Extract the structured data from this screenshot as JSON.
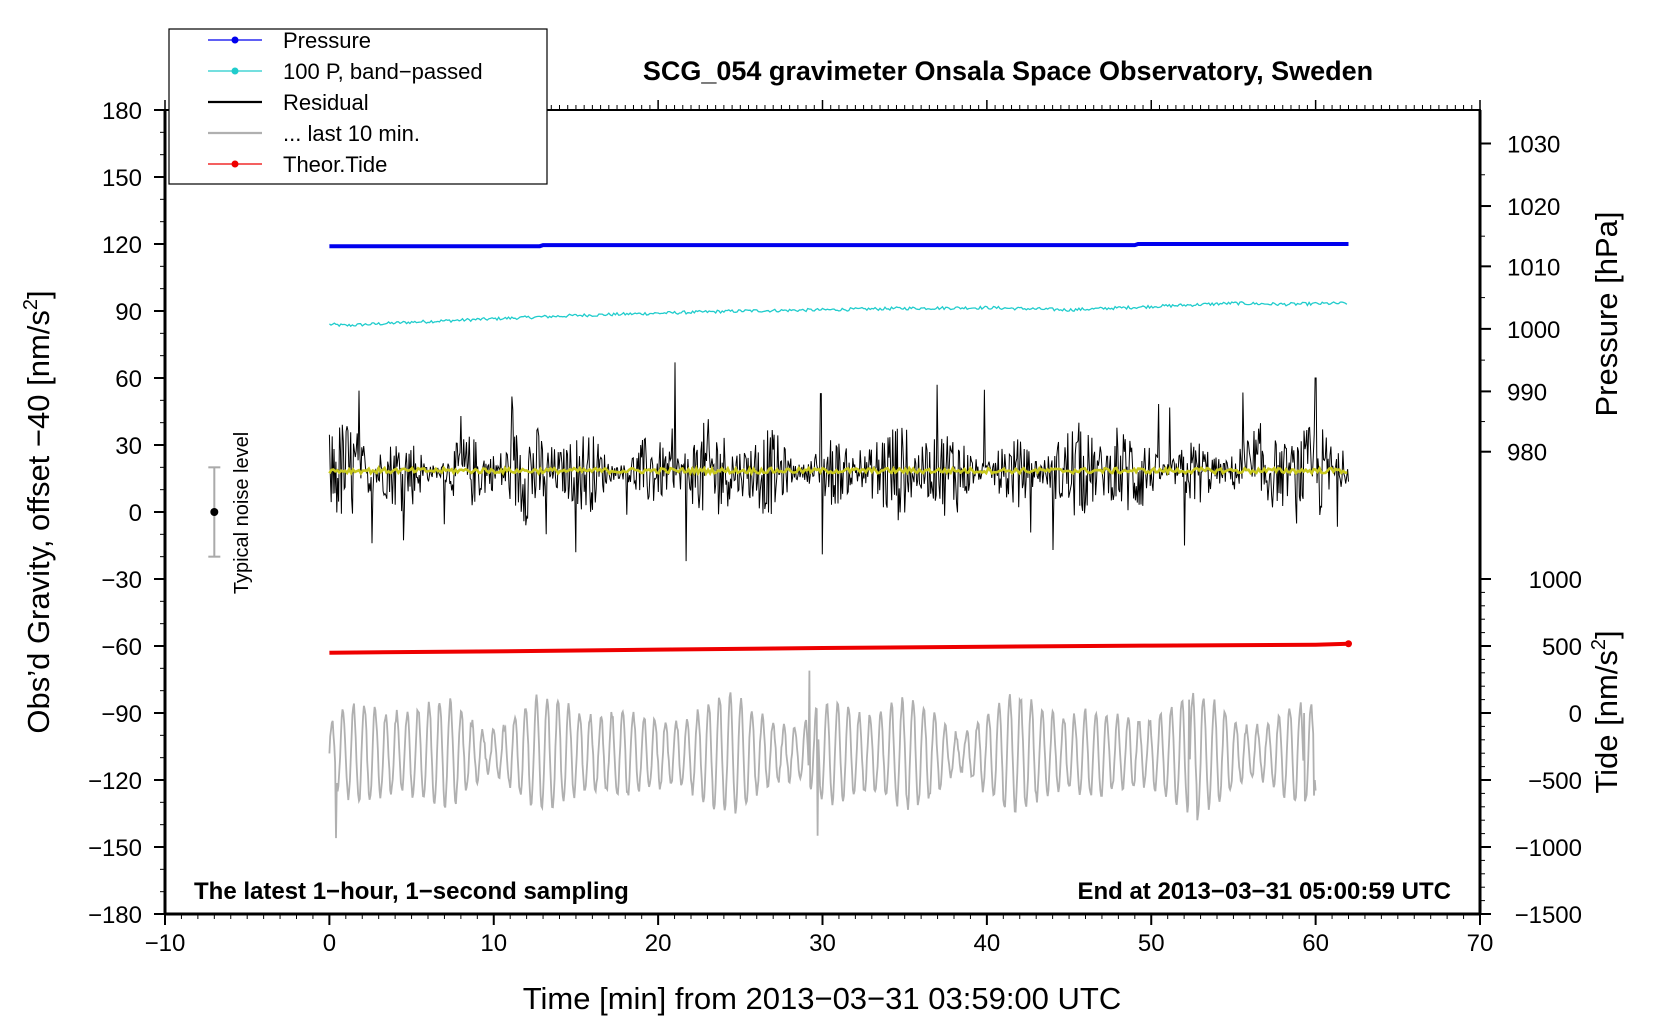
{
  "chart_data": {
    "type": "line",
    "title": "SCG_054 gravimeter Onsala Space Observatory, Sweden",
    "xlabel": "Time [min] from 2013−03−31 03:59:00 UTC",
    "xlim": [
      -10,
      70
    ],
    "xticks": [
      -10,
      0,
      10,
      20,
      30,
      40,
      50,
      60,
      70
    ],
    "xtick_labels": [
      "−10",
      "0",
      "10",
      "20",
      "30",
      "40",
      "50",
      "60",
      "70"
    ],
    "left_axis": {
      "label_main": "Obs’d Gravity, offset −40 [nm/s",
      "label_sup": "2",
      "label_end": "]",
      "ylim": [
        -180,
        180
      ],
      "ticks": [
        180,
        150,
        120,
        90,
        60,
        30,
        0,
        -30,
        -60,
        -90,
        -120,
        -150,
        -180
      ],
      "tick_labels": [
        "180",
        "150",
        "120",
        "90",
        "60",
        "30",
        "0",
        "−30",
        "−60",
        "−90",
        "−120",
        "−150",
        "−180"
      ]
    },
    "pressure_axis": {
      "label": "Pressure [hPa]",
      "ticks": [
        1030,
        1020,
        1010,
        1000,
        990,
        980
      ],
      "tick_labels": [
        "1030",
        "1020",
        "1010",
        "1000",
        "990",
        "980"
      ],
      "gravity_equiv": [
        165,
        137,
        110,
        82,
        54,
        27
      ]
    },
    "tide_axis": {
      "label_main": "Tide [nm/s",
      "label_sup": "2",
      "label_end": "]",
      "ticks": [
        1000,
        500,
        0,
        -500,
        -1000,
        -1500
      ],
      "tick_labels": [
        "1000",
        "500",
        "0",
        "−500",
        "−1000",
        "−1500"
      ],
      "gravity_equiv": [
        -30,
        -60,
        -90,
        -120,
        -150,
        -180
      ]
    },
    "legend": {
      "position": "top-left",
      "entries": [
        {
          "label": "Pressure",
          "color": "#0000ee",
          "marker": true
        },
        {
          "label": "100 P, band−passed",
          "color": "#20cccc",
          "marker": true
        },
        {
          "label": "Residual",
          "color": "#000000",
          "marker": false
        },
        {
          "label": "... last 10 min.",
          "color": "#b0b0b0",
          "marker": false
        },
        {
          "label": "Theor.Tide",
          "color": "#ee0000",
          "marker": true
        }
      ]
    },
    "series": [
      {
        "name": "Pressure",
        "color": "#0000ee",
        "x": [
          0,
          12.8,
          13,
          49,
          49.2,
          62
        ],
        "y": [
          119,
          119,
          119.5,
          119.5,
          120,
          120
        ]
      },
      {
        "name": "100 P, band−passed",
        "color": "#20cccc",
        "x": [
          0,
          1,
          5,
          10,
          15,
          20,
          25,
          30,
          35,
          40,
          45,
          50,
          55,
          58,
          62
        ],
        "y": [
          84,
          83.5,
          85,
          86.5,
          88,
          89,
          90,
          90.5,
          91.2,
          91.5,
          90.5,
          92,
          93.5,
          93,
          93.5
        ]
      },
      {
        "name": "Residual",
        "color": "#000000",
        "x_range": [
          0,
          62
        ],
        "mean": 18,
        "spread": 18,
        "samples": 1100,
        "spikes": [
          [
            1,
            36
          ],
          [
            2.6,
            -14
          ],
          [
            8,
            43
          ],
          [
            13.2,
            -10
          ],
          [
            15,
            -18
          ],
          [
            21,
            67
          ],
          [
            21.7,
            -22
          ],
          [
            29.9,
            53
          ],
          [
            30,
            -19
          ],
          [
            37,
            57
          ],
          [
            44,
            -17
          ],
          [
            52,
            -15
          ],
          [
            60,
            60
          ]
        ]
      },
      {
        "name": "Residual (smoothed)",
        "color": "#c8c81e",
        "x_range": [
          0,
          62
        ],
        "mean": 18.5
      },
      {
        "name": "... last 10 min.",
        "color": "#b0b0b0",
        "x_range": [
          0,
          60
        ],
        "mean": -108,
        "amplitude": 22,
        "extremes": [
          [
            0.4,
            -146
          ],
          [
            29.2,
            -71
          ],
          [
            29.7,
            -145
          ],
          [
            52.3,
            -84
          ],
          [
            52.8,
            -138
          ],
          [
            59.3,
            -90
          ],
          [
            59.9,
            -127
          ]
        ]
      },
      {
        "name": "Theor.Tide",
        "color": "#ee0000",
        "x": [
          0,
          10,
          20,
          30,
          40,
          50,
          60,
          62
        ],
        "y": [
          -63,
          -62.4,
          -61.6,
          -60.9,
          -60.3,
          -59.8,
          -59.4,
          -59
        ]
      }
    ],
    "noise_bar": {
      "label": "Typical noise level",
      "x": -7,
      "center": 0,
      "low": -20,
      "high": 20
    },
    "annotations": {
      "bottom_left": "The latest 1−hour, 1−second sampling",
      "bottom_right": "End at 2013−03−31 05:00:59 UTC"
    }
  }
}
